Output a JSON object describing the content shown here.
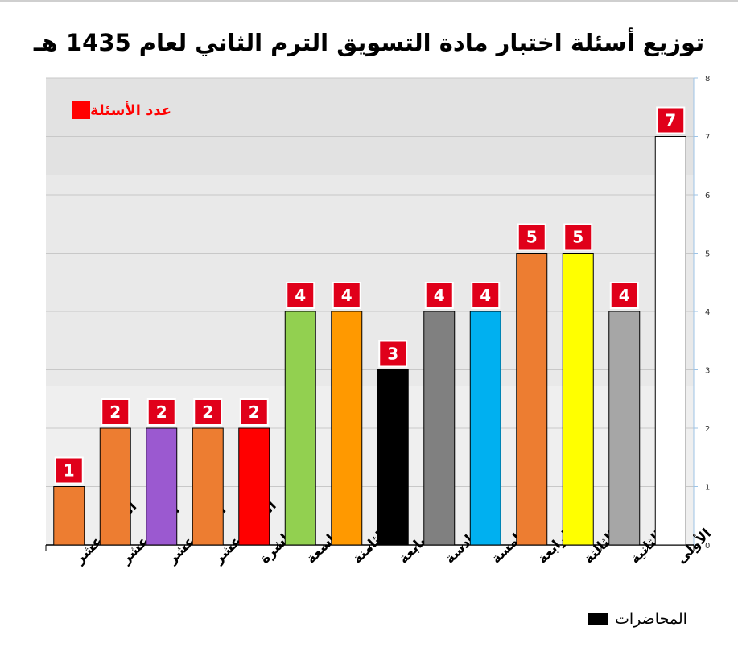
{
  "title": "توزيع أسئلة اختبار مادة التسويق الترم الثاني لعام 1435 هـ",
  "chart_data": {
    "type": "bar",
    "categories": [
      "الرابعة عشر",
      "الثالثة عشر",
      "الثانية عشر",
      "الحادية عشر",
      "العاشرة",
      "التاسعة",
      "الثامنة",
      "السابعة",
      "السادسة",
      "الخامسة",
      "الرابعة",
      "الثالثة",
      "الثانية",
      "الأولى"
    ],
    "values": [
      1,
      2,
      2,
      2,
      2,
      4,
      4,
      3,
      4,
      4,
      5,
      5,
      4,
      7
    ],
    "colors": [
      "#ed7d31",
      "#ed7d31",
      "#9b59d0",
      "#ed7d31",
      "#ff0000",
      "#92d050",
      "#ff9900",
      "#000000",
      "#808080",
      "#00b0f0",
      "#ed7d31",
      "#ffff00",
      "#a6a6a6",
      "#ffffff"
    ],
    "ylim": [
      0,
      8
    ],
    "yticks": [
      "0",
      "1",
      "2",
      "3",
      "4",
      "5",
      "6",
      "7",
      "8"
    ],
    "legend": "عدد الأسئلة",
    "legend_color": "#ff0000",
    "xlabel": "المحاضرات",
    "label_box_color": "#e0001a",
    "grid": true
  }
}
